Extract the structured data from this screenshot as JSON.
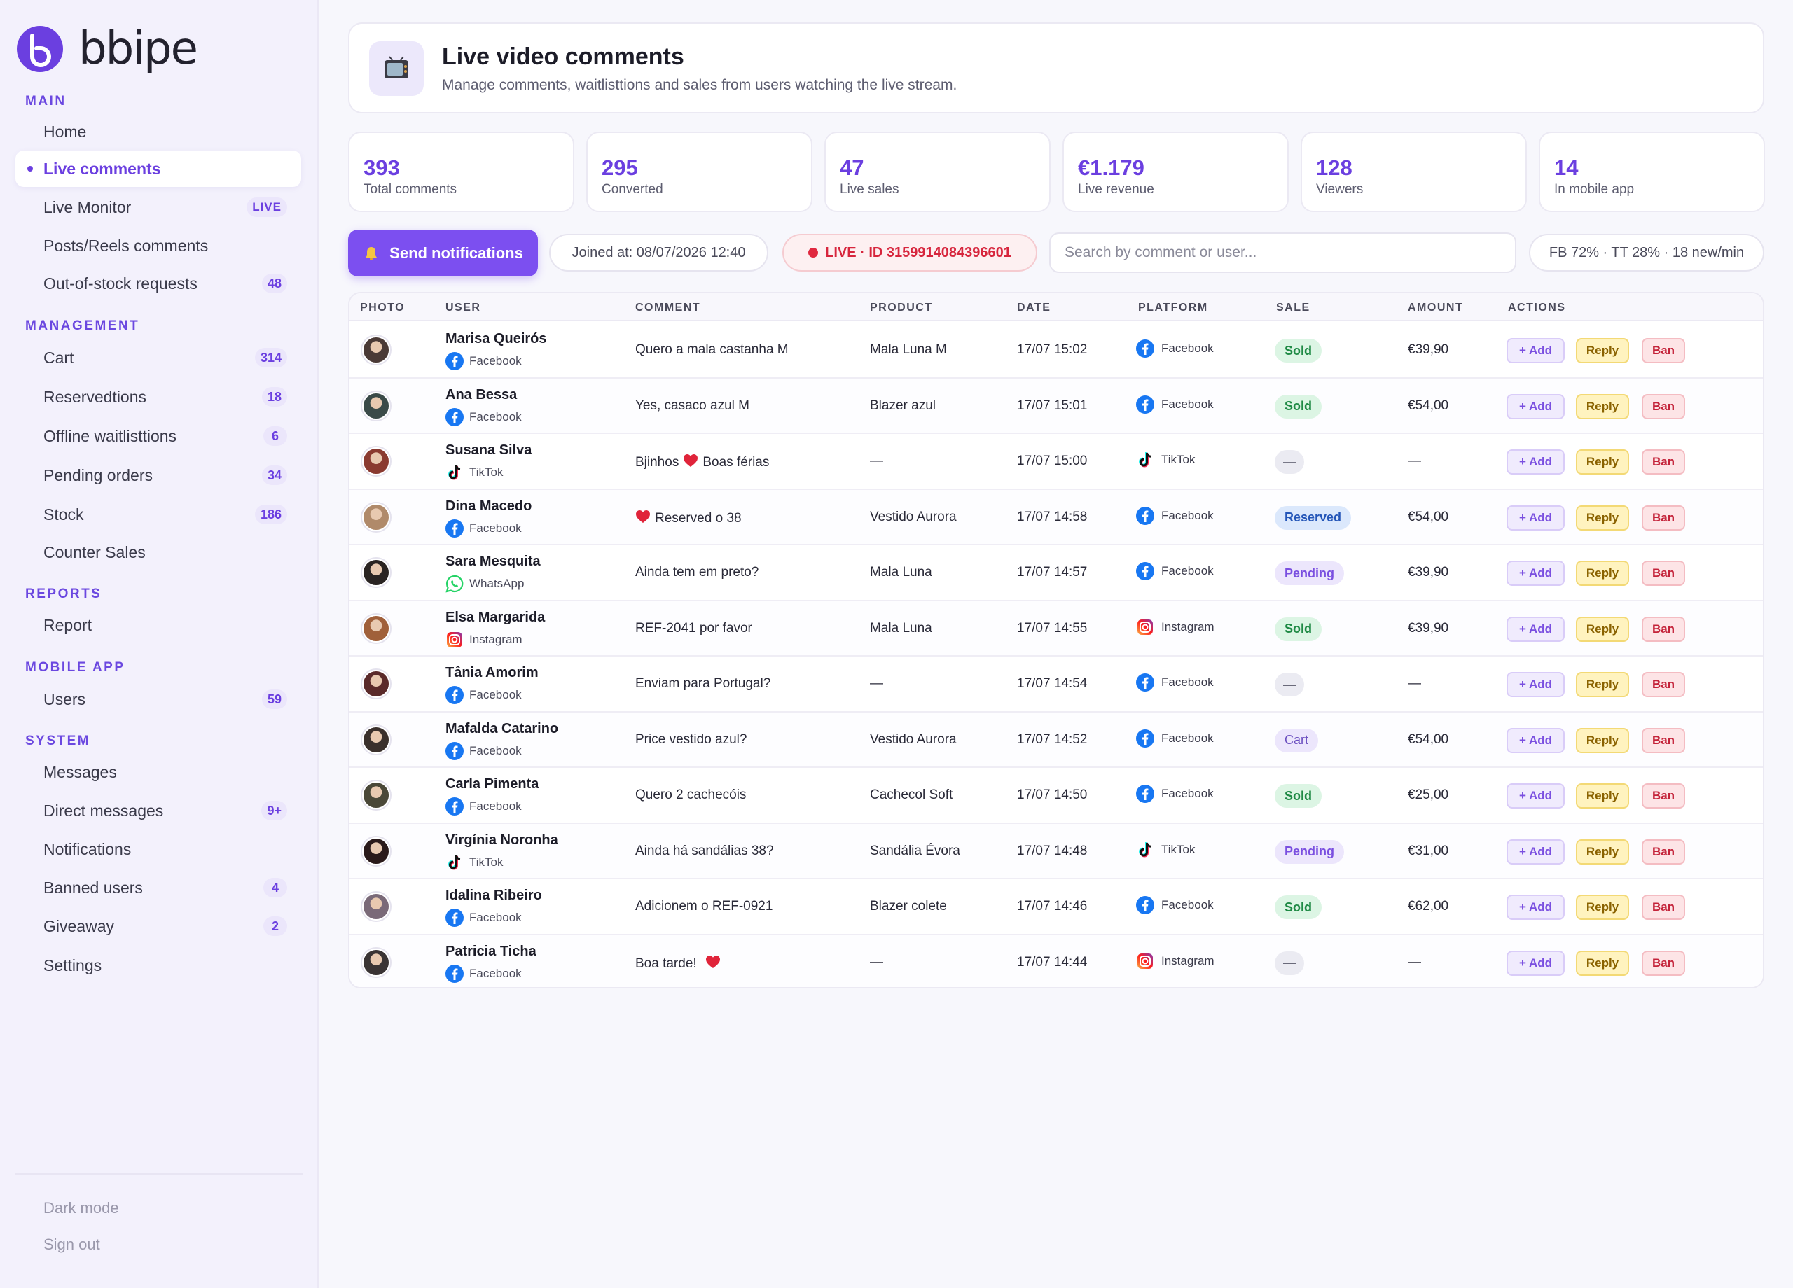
{
  "brand": {
    "name": "bbipe"
  },
  "nav": {
    "sections": [
      {
        "title": "MAIN"
      },
      {
        "title": "MANAGEMENT"
      },
      {
        "title": "REPORTS"
      },
      {
        "title": "MOBILE APP"
      },
      {
        "title": "SYSTEM"
      }
    ],
    "items": [
      {
        "label": "Home",
        "badge": ""
      },
      {
        "label": "Live comments",
        "badge": ""
      },
      {
        "label": "Live Monitor",
        "badge": "LIVE"
      },
      {
        "label": "Posts/Reels comments",
        "badge": ""
      },
      {
        "label": "Out-of-stock requests",
        "badge": "48"
      },
      {
        "label": "Cart",
        "badge": "314"
      },
      {
        "label": "Reservedtions",
        "badge": "18"
      },
      {
        "label": "Offline waitlisttions",
        "badge": "6"
      },
      {
        "label": "Pending orders",
        "badge": "34"
      },
      {
        "label": "Stock",
        "badge": "186"
      },
      {
        "label": "Counter Sales",
        "badge": ""
      },
      {
        "label": "Report",
        "badge": ""
      },
      {
        "label": "Users",
        "badge": "59"
      },
      {
        "label": "Messages",
        "badge": ""
      },
      {
        "label": "Direct messages",
        "badge": "9+"
      },
      {
        "label": "Notifications",
        "badge": ""
      },
      {
        "label": "Banned users",
        "badge": "4"
      },
      {
        "label": "Giveaway",
        "badge": "2"
      },
      {
        "label": "Settings",
        "badge": ""
      }
    ],
    "footer": {
      "dark_mode": "Dark mode",
      "sign_out": "Sign out"
    }
  },
  "header": {
    "title": "Live video comments",
    "subtitle": "Manage comments, waitlisttions and sales from users watching the live stream."
  },
  "stats": [
    {
      "value": "393",
      "label": "Total comments"
    },
    {
      "value": "295",
      "label": "Converted"
    },
    {
      "value": "47",
      "label": "Live sales"
    },
    {
      "value": "€1.179",
      "label": "Live revenue"
    },
    {
      "value": "128",
      "label": "Viewers"
    },
    {
      "value": "14",
      "label": "In mobile app"
    }
  ],
  "toolbar": {
    "notify_label": "Send notifications",
    "joined": "Joined at: 08/07/2026 12:40",
    "live_id": "LIVE · ID 315991408439660​1",
    "search_placeholder": "Search by comment or user...",
    "traffic": "FB 72% · TT 28% · 18 new/min"
  },
  "table": {
    "headers": {
      "photo": "PHOTO",
      "user": "USER",
      "comment": "COMMENT",
      "product": "PRODUCT",
      "date": "DATE",
      "platform": "PLATFORM",
      "sale": "SALE",
      "amount": "AMOUNT",
      "actions": "ACTIONS"
    },
    "actions": {
      "add": "+ Add",
      "reply": "Reply",
      "ban": "Ban"
    },
    "rows": [
      {
        "name": "Marisa Queirós",
        "user_platform": "Facebook",
        "comment": "Quero a mala castanha M",
        "heart": "",
        "heart_after": "",
        "product": "Mala Luna M",
        "date": "17/07 15:02",
        "platform": "Facebook",
        "sale": "Sold",
        "sale_type": "sold",
        "amount": "€39,90",
        "avatar_color": "#4a3a36"
      },
      {
        "name": "Ana Bessa",
        "user_platform": "Facebook",
        "comment": "Yes, casaco azul M",
        "heart": "",
        "heart_after": "",
        "product": "Blazer azul",
        "date": "17/07 15:01",
        "platform": "Facebook",
        "sale": "Sold",
        "sale_type": "sold",
        "amount": "€54,00",
        "avatar_color": "#3a4a48"
      },
      {
        "name": "Susana Silva",
        "user_platform": "TikTok",
        "comment": "Bjinhos",
        "heart": "",
        "heart_after": "Boas férias",
        "product": "—",
        "date": "17/07 15:00",
        "platform": "TikTok",
        "sale": "—",
        "sale_type": "none",
        "amount": "—",
        "avatar_color": "#8a3a30"
      },
      {
        "name": "Dina Macedo",
        "user_platform": "Facebook",
        "comment": "Reserved o 38",
        "heart": "before",
        "heart_after": "",
        "product": "Vestido Aurora",
        "date": "17/07 14:58",
        "platform": "Facebook",
        "sale": "Reserved",
        "sale_type": "reserved",
        "amount": "€54,00",
        "avatar_color": "#b08a6a"
      },
      {
        "name": "Sara Mesquita",
        "user_platform": "WhatsApp",
        "comment": "Ainda tem em preto?",
        "heart": "",
        "heart_after": "",
        "product": "Mala Luna",
        "date": "17/07 14:57",
        "platform": "Facebook",
        "sale": "Pending",
        "sale_type": "pending",
        "amount": "€39,90",
        "avatar_color": "#2a2422"
      },
      {
        "name": "Elsa Margarida",
        "user_platform": "Instagram",
        "comment": "REF-2041 por favor",
        "heart": "",
        "heart_after": "",
        "product": "Mala Luna",
        "date": "17/07 14:55",
        "platform": "Instagram",
        "sale": "Sold",
        "sale_type": "sold",
        "amount": "€39,90",
        "avatar_color": "#a0603a"
      },
      {
        "name": "Tânia Amorim",
        "user_platform": "Facebook",
        "comment": "Enviam para Portugal?",
        "heart": "",
        "heart_after": "",
        "product": "—",
        "date": "17/07 14:54",
        "platform": "Facebook",
        "sale": "—",
        "sale_type": "none",
        "amount": "—",
        "avatar_color": "#5a2a2a"
      },
      {
        "name": "Mafalda Catarino",
        "user_platform": "Facebook",
        "comment": "Price vestido azul?",
        "heart": "",
        "heart_after": "",
        "product": "Vestido Aurora",
        "date": "17/07 14:52",
        "platform": "Facebook",
        "sale": "Cart",
        "sale_type": "cart",
        "amount": "€54,00",
        "avatar_color": "#3a302c"
      },
      {
        "name": "Carla Pimenta",
        "user_platform": "Facebook",
        "comment": "Quero 2 cachecóis",
        "heart": "",
        "heart_after": "",
        "product": "Cachecol Soft",
        "date": "17/07 14:50",
        "platform": "Facebook",
        "sale": "Sold",
        "sale_type": "sold",
        "amount": "€25,00",
        "avatar_color": "#4a4838"
      },
      {
        "name": "Virgínia Noronha",
        "user_platform": "TikTok",
        "comment": "Ainda há sandálias 38?",
        "heart": "",
        "heart_after": "",
        "product": "Sandália Évora",
        "date": "17/07 14:48",
        "platform": "TikTok",
        "sale": "Pending",
        "sale_type": "pending",
        "amount": "€31,00",
        "avatar_color": "#2a1a1a"
      },
      {
        "name": "Idalina Ribeiro",
        "user_platform": "Facebook",
        "comment": "Adicionem o REF-0921",
        "heart": "",
        "heart_after": "",
        "product": "Blazer colete",
        "date": "17/07 14:46",
        "platform": "Facebook",
        "sale": "Sold",
        "sale_type": "sold",
        "amount": "€62,00",
        "avatar_color": "#7a6a78"
      },
      {
        "name": "Patricia Ticha",
        "user_platform": "Facebook",
        "comment": "Boa tarde!",
        "heart": "after",
        "heart_after": "",
        "product": "—",
        "date": "17/07 14:44",
        "platform": "Instagram",
        "sale": "—",
        "sale_type": "none",
        "amount": "—",
        "avatar_color": "#3a3434"
      }
    ]
  }
}
